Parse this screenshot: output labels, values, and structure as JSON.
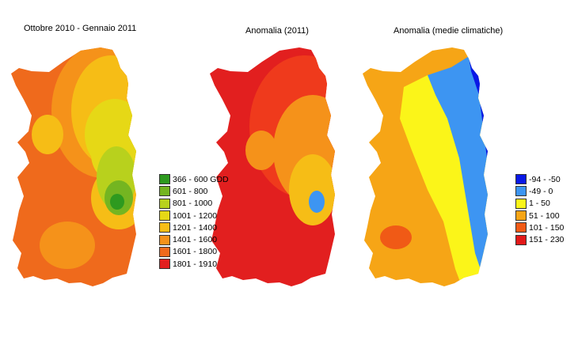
{
  "panels": [
    {
      "title": "Ottobre 2010 - Gennaio 2011",
      "legend": [
        {
          "label": "366 - 600 GDD",
          "color": "#2e9a1f"
        },
        {
          "label": "601 - 800",
          "color": "#74b521"
        },
        {
          "label": "801 - 1000",
          "color": "#b8d11d"
        },
        {
          "label": "1001 - 1200",
          "color": "#e6d816"
        },
        {
          "label": "1201 - 1400",
          "color": "#f6bd16"
        },
        {
          "label": "1401 - 1600",
          "color": "#f5921a"
        },
        {
          "label": "1601 - 1800",
          "color": "#ef6a1c"
        },
        {
          "label": "1801 - 1910",
          "color": "#e21f1f"
        }
      ]
    },
    {
      "title": "Anomalia (2011)"
    },
    {
      "title": "Anomalia (medie climatiche)",
      "legend": [
        {
          "label": "-94 - -50",
          "color": "#0a18e6"
        },
        {
          "label": "-49 - 0",
          "color": "#3d95f2"
        },
        {
          "label": "1 - 50",
          "color": "#fbf519"
        },
        {
          "label": "51 - 100",
          "color": "#f6a516"
        },
        {
          "label": "101 - 150",
          "color": "#f05a16"
        },
        {
          "label": "151 - 230",
          "color": "#e21919"
        }
      ]
    }
  ]
}
